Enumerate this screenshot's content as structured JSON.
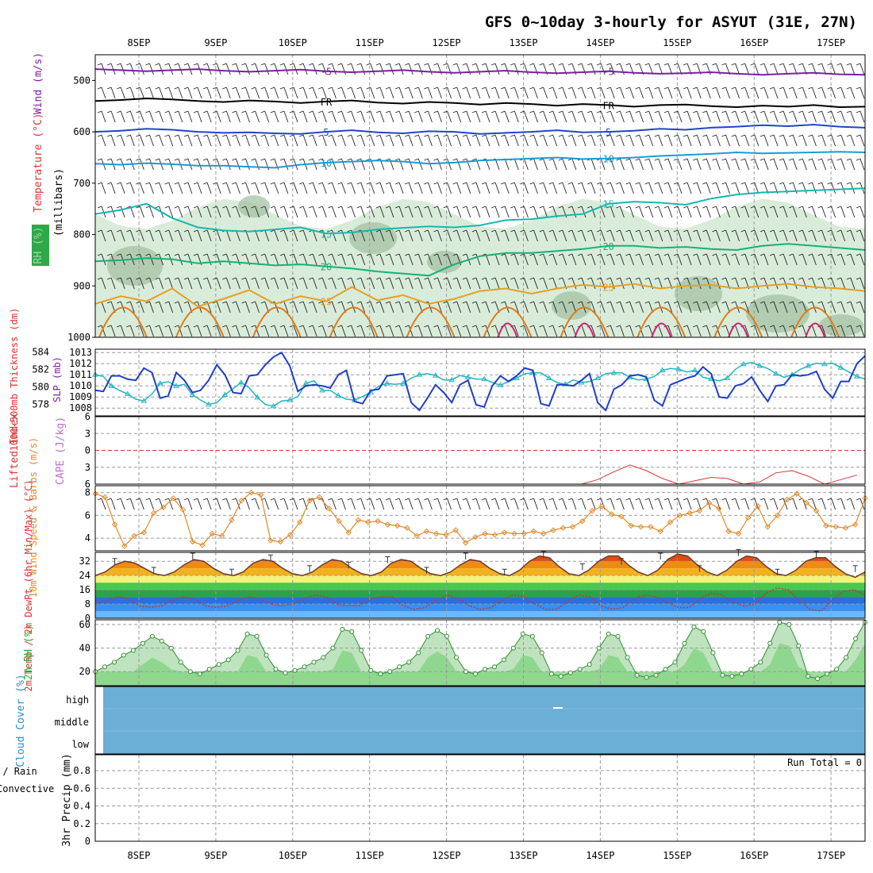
{
  "title": "GFS 0~10day 3-hourly for ASYUT (31E, 27N)",
  "dates": [
    "8SEP",
    "9SEP",
    "10SEP",
    "11SEP",
    "12SEP",
    "13SEP",
    "14SEP",
    "15SEP",
    "16SEP",
    "17SEP"
  ],
  "run_total": "Run Total = 0",
  "colors": {
    "rh_shade": "#cfe6cf",
    "rh_dark": "#9fbfa0",
    "temp_neg": "#7b1fa2",
    "temp_fr": "#000000",
    "temp_5": "#1f45c8",
    "temp_10": "#1b9ad6",
    "temp_15": "#16b8b0",
    "temp_20": "#18b07a",
    "temp_25": "#e5a023",
    "temp_30": "#e07a1a",
    "temp_35": "#d81b7a",
    "slp": "#1f3fc7",
    "thickness": "#22b5c2",
    "li": "#dd3333",
    "wind": "#e08a2a",
    "dewpt": "#c0392b",
    "rh2m": "#33aa33",
    "cloud": "#6baed6",
    "precip_total": "#33aa33",
    "precip_conv": "#dd3333"
  },
  "chart_data": [
    {
      "panel": "upper-air",
      "type": "contour",
      "ylabel_parts": [
        "Wind (m/s)",
        "Temperature (°C)",
        "RH (%)",
        "(millibars)"
      ],
      "ylim": [
        1000,
        450
      ],
      "yticks": [
        500,
        600,
        700,
        800,
        900,
        1000
      ],
      "series": [
        {
          "label": "-5",
          "y": [
            478,
            480,
            482,
            480,
            478,
            481,
            483,
            481,
            479,
            482,
            484,
            482,
            480,
            483,
            485,
            483,
            481,
            484,
            486,
            484,
            482,
            485,
            487,
            486,
            484,
            487,
            489,
            487,
            485,
            488,
            489
          ]
        },
        {
          "label": "FR",
          "y": [
            540,
            538,
            535,
            537,
            540,
            542,
            539,
            541,
            544,
            541,
            539,
            543,
            545,
            542,
            544,
            547,
            544,
            546,
            549,
            546,
            548,
            551,
            548,
            547,
            550,
            552,
            549,
            551,
            548,
            552,
            551
          ]
        },
        {
          "label": "5",
          "y": [
            600,
            598,
            594,
            596,
            600,
            602,
            601,
            603,
            604,
            600,
            597,
            601,
            603,
            599,
            600,
            604,
            602,
            600,
            597,
            601,
            600,
            598,
            594,
            596,
            592,
            590,
            587,
            589,
            586,
            590,
            592
          ]
        },
        {
          "label": "10",
          "y": [
            662,
            664,
            661,
            663,
            666,
            666,
            668,
            670,
            664,
            660,
            658,
            656,
            658,
            662,
            660,
            656,
            654,
            652,
            650,
            653,
            652,
            650,
            647,
            645,
            643,
            640,
            642,
            641,
            640,
            639,
            640
          ]
        },
        {
          "label": "15",
          "y": [
            760,
            752,
            740,
            768,
            786,
            792,
            794,
            790,
            786,
            798,
            796,
            790,
            787,
            784,
            786,
            782,
            772,
            770,
            764,
            760,
            740,
            736,
            738,
            742,
            730,
            722,
            718,
            716,
            714,
            712,
            710
          ]
        },
        {
          "label": "20",
          "y": [
            852,
            850,
            846,
            848,
            856,
            852,
            856,
            860,
            858,
            862,
            866,
            872,
            876,
            880,
            858,
            842,
            836,
            836,
            832,
            828,
            822,
            822,
            826,
            824,
            828,
            830,
            822,
            818,
            822,
            826,
            830
          ]
        },
        {
          "label": "25",
          "y": [
            935,
            920,
            930,
            905,
            940,
            925,
            908,
            935,
            920,
            930,
            902,
            928,
            918,
            935,
            925,
            910,
            905,
            915,
            905,
            898,
            902,
            896,
            905,
            900,
            898,
            905,
            900,
            896,
            902,
            905,
            910
          ]
        }
      ]
    },
    {
      "panel": "slp-thickness",
      "type": "line",
      "ylabel_left": "1000-500mb Thickness (dm)",
      "ylabel_right": "SLP (mb)",
      "left_ticks": [
        578,
        580,
        582,
        584
      ],
      "right_ticks": [
        1008,
        1009,
        1010,
        1011,
        1012,
        1013
      ],
      "ylim_slp": [
        1007.3,
        1013.3
      ],
      "series": [
        {
          "name": "SLP",
          "values": [
            1009.6,
            1009.5,
            1010.9,
            1010.9,
            1010.6,
            1010.5,
            1011.6,
            1011.2,
            1008.9,
            1009.1,
            1011.2,
            1010.5,
            1009.4,
            1009.6,
            1010.5,
            1011.9,
            1011.0,
            1009.4,
            1009.3,
            1010.9,
            1011.0,
            1011.9,
            1012.6,
            1013.0,
            1011.8,
            1009.5,
            1010.0,
            1010.1,
            1010.0,
            1009.8,
            1011.0,
            1011.4,
            1008.6,
            1008.4,
            1009.6,
            1009.7,
            1010.9,
            1011.0,
            1011.1,
            1008.5,
            1007.8,
            1008.9,
            1010.1,
            1009.4,
            1008.5,
            1010.1,
            1010.5,
            1008.3,
            1008.1,
            1010.0,
            1010.9,
            1010.4,
            1010.9,
            1011.6,
            1011.4,
            1008.4,
            1008.2,
            1010.1,
            1010.1,
            1010.0,
            1010.5,
            1011.1,
            1008.5,
            1007.8,
            1009.7,
            1010.1,
            1010.9,
            1011.0,
            1010.8,
            1008.7,
            1008.2,
            1010.1,
            1010.4,
            1010.7,
            1010.9,
            1011.7,
            1011.1,
            1009.0,
            1008.9,
            1010.0,
            1010.2,
            1010.8,
            1009.6,
            1008.6,
            1010.0,
            1010.1,
            1011.0,
            1010.9,
            1011.0,
            1011.3,
            1009.7,
            1008.9,
            1010.4,
            1010.4,
            1012.0,
            1012.7
          ]
        },
        {
          "name": "Thickness",
          "values": [
            581.4,
            581.2,
            580.1,
            579.6,
            579.2,
            578.6,
            578.4,
            579.2,
            580.4,
            580.6,
            580.1,
            580.3,
            579.1,
            578.5,
            578.0,
            578.2,
            579.1,
            579.8,
            580.5,
            579.9,
            578.8,
            578.0,
            577.8,
            578.4,
            578.5,
            578.9,
            580.4,
            580.7,
            579.6,
            579.6,
            579.0,
            578.6,
            578.5,
            578.9,
            579.4,
            580.1,
            580.4,
            580.3,
            580.4,
            581.0,
            581.4,
            581.5,
            581.3,
            580.8,
            580.8,
            581.3,
            581.1,
            580.9,
            580.9,
            580.5,
            580.2,
            580.6,
            581.0,
            581.5,
            581.6,
            581.6,
            581.0,
            580.5,
            580.3,
            580.8,
            580.5,
            580.6,
            581.0,
            581.5,
            581.6,
            581.6,
            581.1,
            580.8,
            580.9,
            581.2,
            581.9,
            582.1,
            582.0,
            581.7,
            581.9,
            581.1,
            580.9,
            580.7,
            581.0,
            582.0,
            582.6,
            582.8,
            582.4,
            582.1,
            581.5,
            581.1,
            581.4,
            582.0,
            582.4,
            582.7,
            582.6,
            582.7,
            582.2,
            581.7,
            581.2,
            580.9
          ]
        }
      ]
    },
    {
      "panel": "stability",
      "type": "line",
      "ylabel_left": "Lifted Index",
      "ylabel_right": "CAPE (J/kg)",
      "yticks": [
        -6,
        -3,
        0,
        3,
        6
      ],
      "series": [
        {
          "name": "Lifted Index",
          "x": [
            60,
            62,
            64,
            66,
            68,
            70,
            72,
            74,
            76,
            78,
            80,
            82,
            84,
            86,
            88,
            90,
            92,
            94
          ],
          "values": [
            6.0,
            5.2,
            3.8,
            2.6,
            3.6,
            5.0,
            6.0,
            5.4,
            4.8,
            5.0,
            6.0,
            5.6,
            4.0,
            3.6,
            4.6,
            6.0,
            5.2,
            4.4
          ]
        }
      ]
    },
    {
      "panel": "wind10m",
      "type": "line",
      "ylabel": "10m Wind Speed & Barbs (m/s)",
      "yticks": [
        4,
        6,
        8
      ],
      "ylim": [
        2.9,
        8.6
      ],
      "series": [
        {
          "name": "10m Wind Speed",
          "values": [
            7.9,
            7.6,
            5.2,
            3.3,
            4.2,
            4.5,
            6.2,
            6.7,
            7.5,
            6.5,
            3.7,
            3.4,
            4.4,
            4.2,
            5.6,
            7.3,
            8.0,
            7.8,
            3.8,
            3.7,
            4.3,
            5.4,
            7.3,
            7.6,
            6.6,
            5.5,
            4.5,
            5.6,
            5.4,
            5.5,
            5.2,
            5.1,
            4.9,
            4.2,
            4.6,
            4.4,
            4.3,
            4.7,
            3.6,
            4.1,
            4.4,
            4.3,
            4.5,
            4.4,
            4.4,
            4.6,
            4.4,
            4.7,
            4.9,
            5.0,
            5.5,
            6.4,
            6.8,
            6.1,
            5.9,
            5.1,
            5.0,
            5.0,
            4.6,
            5.4,
            6.0,
            6.2,
            6.4,
            7.1,
            6.6,
            4.6,
            4.4,
            5.8,
            6.8,
            5.0,
            6.0,
            7.4,
            7.9,
            7.1,
            6.4,
            5.1,
            5.0,
            4.9,
            5.2,
            7.5
          ]
        }
      ]
    },
    {
      "panel": "temperature",
      "type": "area",
      "ylabel": "2m Temp / 2m DewPt (6hr Min/Max) (°C)",
      "yticks": [
        0,
        8,
        16,
        24,
        32
      ],
      "ylim": [
        0,
        37
      ],
      "series": [
        {
          "name": "2m Temp",
          "values": [
            24.0,
            26.0,
            30.0,
            32.0,
            31.0,
            28.0,
            25.0,
            24.0,
            26.0,
            30.0,
            33.0,
            32.0,
            28.0,
            25.0,
            24.0,
            26.0,
            31.0,
            33.0,
            32.0,
            28.0,
            25.0,
            24.0,
            26.0,
            30.0,
            33.0,
            32.0,
            28.0,
            25.0,
            24.0,
            26.0,
            31.0,
            33.0,
            32.0,
            28.0,
            25.0,
            24.0,
            26.0,
            30.0,
            33.0,
            32.0,
            28.0,
            25.0,
            24.0,
            27.0,
            32.0,
            35.0,
            34.0,
            29.0,
            25.0,
            24.0,
            27.0,
            32.0,
            35.0,
            35.0,
            30.0,
            26.0,
            24.0,
            27.0,
            33.0,
            36.0,
            35.0,
            30.0,
            26.0,
            24.0,
            27.0,
            32.0,
            35.0,
            34.0,
            29.0,
            25.0,
            24.0,
            27.0,
            32.0,
            34.0,
            34.0,
            29.0,
            25.0,
            23.0,
            26.0
          ]
        },
        {
          "name": "2m DewPt",
          "values": [
            8.0,
            10.0,
            12.0,
            11.0,
            7.0,
            6.0,
            7.0,
            10.0,
            12.0,
            11.0,
            7.0,
            6.0,
            7.0,
            10.0,
            12.0,
            11.0,
            8.0,
            7.0,
            8.0,
            11.0,
            13.0,
            12.0,
            8.0,
            7.0,
            7.0,
            11.0,
            12.0,
            12.0,
            7.0,
            5.0,
            6.0,
            10.0,
            13.0,
            11.0,
            7.0,
            5.0,
            6.0,
            10.0,
            13.0,
            12.0,
            8.0,
            5.0,
            5.0,
            10.0,
            13.0,
            12.0,
            7.0,
            5.0,
            6.0,
            11.0,
            13.0,
            12.0,
            9.0,
            6.0,
            6.0,
            11.0,
            14.0,
            13.0,
            9.0,
            7.0,
            8.0,
            14.0,
            17.0,
            16.0,
            10.0,
            5.0,
            4.0,
            10.0,
            15.0,
            16.0,
            13.0
          ]
        }
      ]
    },
    {
      "panel": "rh2m",
      "type": "area",
      "ylabel": "2m RH (%)",
      "yticks": [
        20,
        40,
        60
      ],
      "ylim": [
        8,
        64
      ],
      "series": [
        {
          "name": "2m RH",
          "values": [
            20,
            24,
            28,
            34,
            38,
            44,
            50,
            46,
            40,
            28,
            20,
            18,
            22,
            26,
            30,
            38,
            52,
            50,
            34,
            22,
            19,
            21,
            24,
            28,
            32,
            40,
            56,
            54,
            38,
            21,
            18,
            20,
            24,
            28,
            36,
            50,
            55,
            50,
            32,
            20,
            18,
            22,
            24,
            30,
            40,
            52,
            50,
            36,
            18,
            16,
            19,
            22,
            26,
            40,
            52,
            50,
            32,
            17,
            15,
            17,
            22,
            28,
            44,
            58,
            54,
            36,
            17,
            16,
            18,
            22,
            28,
            44,
            62,
            60,
            42,
            16,
            14,
            18,
            22,
            32,
            48,
            62
          ]
        }
      ]
    },
    {
      "panel": "cloud",
      "type": "area",
      "ylabel": "Cloud Cover (%)",
      "levels": [
        "high",
        "middle",
        "low"
      ],
      "series": [
        {
          "name": "Cloud Cover",
          "values": [
            0
          ]
        }
      ]
    },
    {
      "panel": "precip",
      "type": "bar",
      "ylabel": "3hr Precip (mm)",
      "ylabel_left": [
        "Total / Rain",
        "Convective"
      ],
      "yticks": [
        0,
        0.2,
        0.4,
        0.6,
        0.8
      ],
      "ylim": [
        0,
        0.98
      ],
      "series": [
        {
          "name": "Total / Rain",
          "values": [
            0
          ]
        },
        {
          "name": "Convective",
          "values": [
            0
          ]
        }
      ]
    }
  ]
}
